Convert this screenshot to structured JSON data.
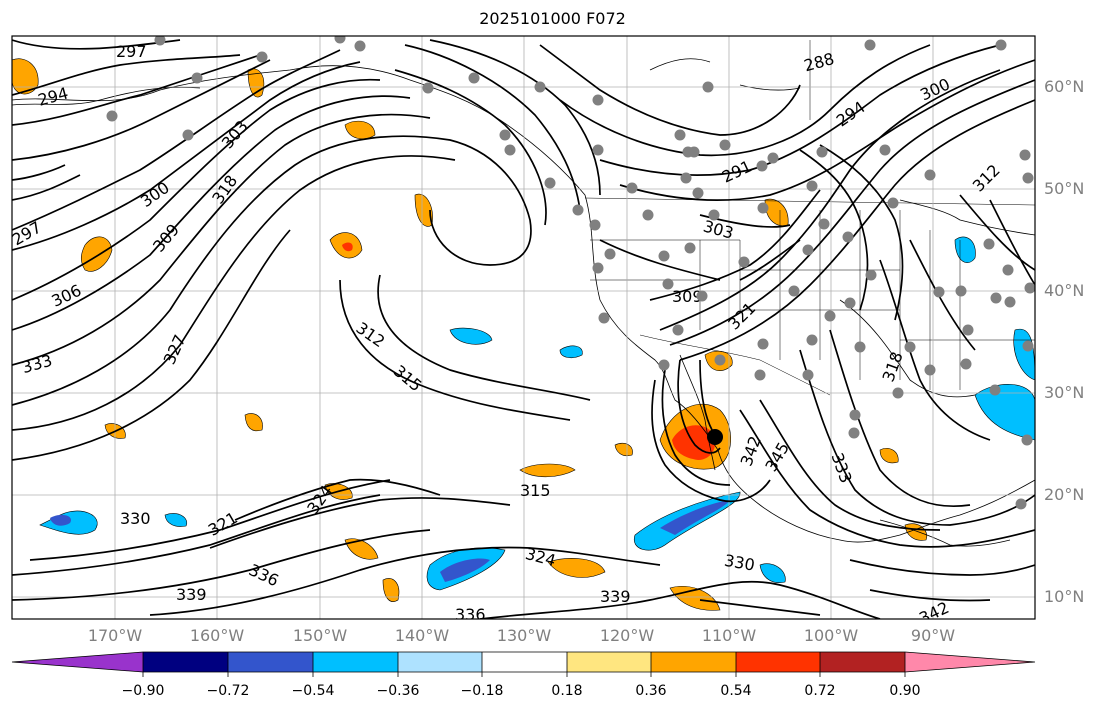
{
  "title": "2025101000 F072",
  "lat_labels": [
    "60°N",
    "50°N",
    "40°N",
    "30°N",
    "20°N",
    "10°N"
  ],
  "lon_labels": [
    "170°W",
    "160°W",
    "150°W",
    "140°W",
    "130°W",
    "120°W",
    "110°W",
    "100°W",
    "90°W"
  ],
  "colorbar": {
    "ticks": [
      "−0.90",
      "−0.72",
      "−0.54",
      "−0.36",
      "−0.18",
      "0.18",
      "0.36",
      "0.54",
      "0.72",
      "0.90"
    ],
    "colors": [
      "#9933cc",
      "#000080",
      "#3355cc",
      "#00bfff",
      "#aee2ff",
      "#ffffff",
      "#ffe680",
      "#ffa500",
      "#ff3300",
      "#b22222",
      "#ff88aa"
    ]
  },
  "contour_labels": [
    "297",
    "294",
    "297",
    "300",
    "303",
    "306",
    "309",
    "312",
    "315",
    "318",
    "321",
    "324",
    "327",
    "330",
    "333",
    "336",
    "339",
    "342",
    "345",
    "288",
    "291",
    "294",
    "300",
    "303",
    "309",
    "312",
    "315",
    "318",
    "321",
    "324",
    "330",
    "333",
    "336",
    "339",
    "342"
  ]
}
